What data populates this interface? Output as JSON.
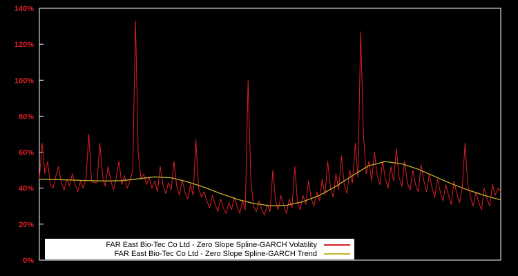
{
  "chart": {
    "background_color": "#000000",
    "plot_border_color": "#ffffff",
    "axis_label_color": "#dd1f26"
  },
  "chart_data": {
    "type": "line",
    "title": "",
    "xlabel": "",
    "ylabel": "",
    "ylim": [
      0,
      140
    ],
    "y_ticks": [
      "0%",
      "20%",
      "40%",
      "60%",
      "80%",
      "100%",
      "120%",
      "140%"
    ],
    "grid": false,
    "legend_position": "bottom-center",
    "axis_label_color": "#dd1f26",
    "series": [
      {
        "name": "FAR East Bio-Tec Co Ltd - Zero Slope Spline-GARCH Volatility",
        "color": "#dd1f26",
        "values": [
          45,
          65,
          48,
          55,
          42,
          40,
          47,
          52,
          43,
          39,
          45,
          41,
          48,
          42,
          38,
          44,
          40,
          46,
          70,
          44,
          43,
          43,
          65,
          47,
          41,
          52,
          44,
          39,
          46,
          55,
          42,
          47,
          40,
          44,
          50,
          133,
          60,
          45,
          48,
          42,
          46,
          40,
          44,
          38,
          52,
          42,
          37,
          43,
          39,
          55,
          41,
          36,
          45,
          38,
          34,
          42,
          36,
          67,
          40,
          35,
          38,
          33,
          29,
          36,
          31,
          27,
          34,
          29,
          26,
          32,
          28,
          35,
          30,
          26,
          33,
          28,
          100,
          45,
          30,
          27,
          33,
          28,
          25,
          31,
          27,
          50,
          33,
          28,
          36,
          30,
          26,
          34,
          29,
          52,
          32,
          28,
          36,
          31,
          44,
          34,
          30,
          38,
          33,
          45,
          36,
          55,
          40,
          35,
          48,
          39,
          58,
          42,
          37,
          50,
          43,
          65,
          46,
          127,
          70,
          48,
          55,
          44,
          60,
          47,
          42,
          55,
          45,
          40,
          52,
          44,
          62,
          46,
          41,
          55,
          43,
          39,
          50,
          42,
          38,
          53,
          44,
          38,
          48,
          40,
          35,
          45,
          38,
          33,
          42,
          36,
          31,
          44,
          37,
          32,
          40,
          65,
          42,
          35,
          30,
          38,
          32,
          28,
          40,
          34,
          30,
          42,
          36,
          40,
          38
        ]
      },
      {
        "name": "FAR East Bio-Tec Co Ltd - Zero Slope Spline-GARCH Trend",
        "color": "#c6b42a",
        "values": [
          45,
          44.8,
          44.5,
          44.2,
          44,
          44.2,
          45.2,
          46.3,
          45.8,
          43.5,
          40.5,
          37,
          33.8,
          31.5,
          30.2,
          30.5,
          32.5,
          36,
          41,
          47,
          52.5,
          54.8,
          53.5,
          50.5,
          46.5,
          42.5,
          39,
          36,
          33.5
        ]
      }
    ]
  }
}
